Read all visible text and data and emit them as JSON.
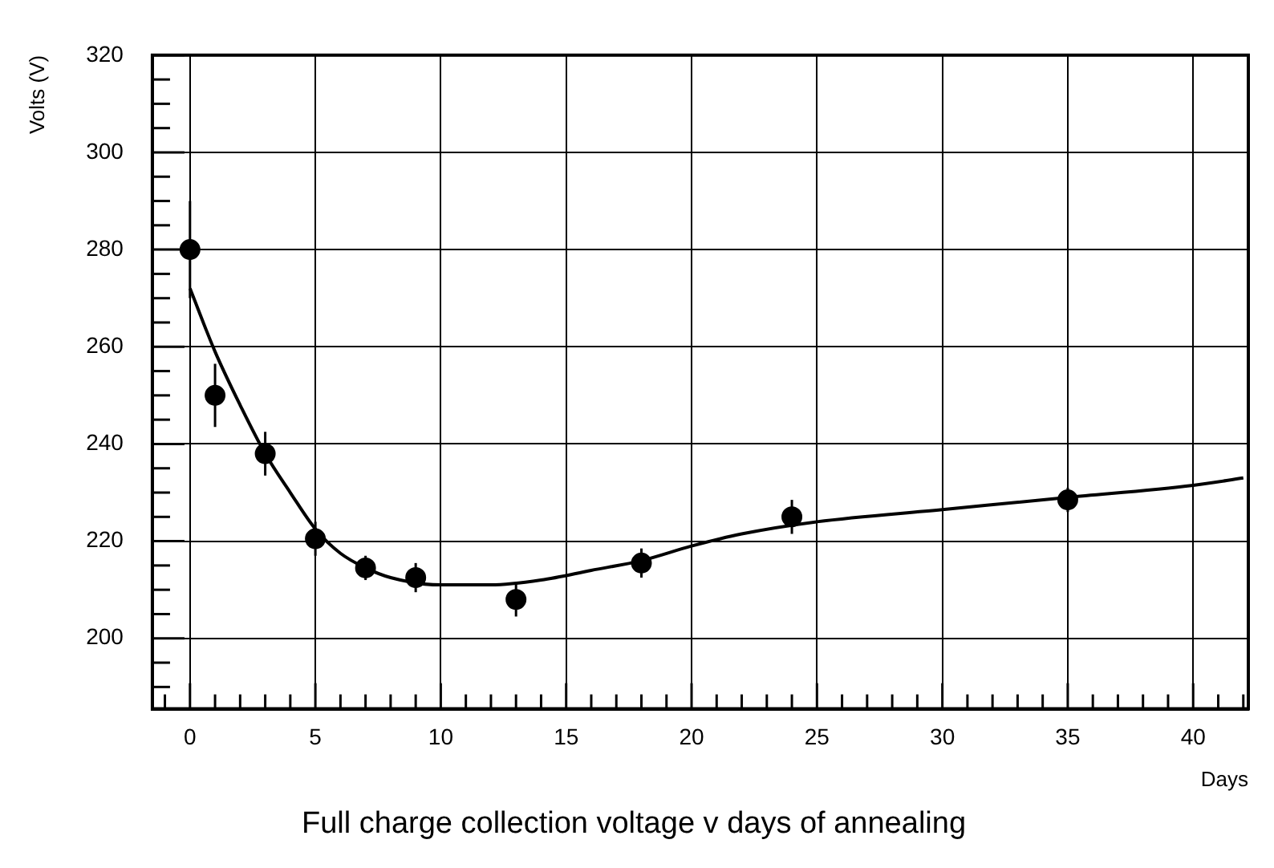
{
  "chart_data": {
    "type": "scatter",
    "title": "Full charge collection voltage v days of annealing",
    "xlabel": "Days",
    "ylabel": "Volts (V)",
    "xlim": [
      -1.5,
      42.2
    ],
    "ylim": [
      185.5,
      320
    ],
    "xticks": [
      0,
      5,
      10,
      15,
      20,
      25,
      30,
      35,
      40
    ],
    "yticks": [
      200,
      220,
      240,
      260,
      280,
      300,
      320
    ],
    "grid": true,
    "legend": false,
    "marker": "circle",
    "series": [
      {
        "color": "#000000",
        "x": [
          0,
          1,
          3,
          5,
          7,
          9,
          13,
          18,
          24,
          35
        ],
        "values": [
          280,
          250,
          238,
          220.5,
          214.5,
          212.5,
          208,
          215.5,
          225,
          228.5
        ],
        "errors": [
          10,
          6.5,
          4.5,
          3.5,
          2.5,
          3,
          3.5,
          3,
          3.5,
          2.5
        ]
      },
      {
        "type": "line",
        "color": "#000000",
        "marker": "none",
        "line_style": "solid",
        "x": [
          0,
          1,
          2,
          3,
          4,
          5,
          6,
          7,
          8,
          10,
          12,
          14,
          16,
          18,
          20,
          22,
          25,
          30,
          35,
          40,
          42
        ],
        "values": [
          272,
          259,
          248,
          238,
          230,
          222.5,
          217.5,
          214.5,
          212.5,
          211,
          211,
          212,
          214,
          216,
          219,
          221.5,
          224,
          226.5,
          229,
          231.5,
          233
        ]
      }
    ]
  }
}
